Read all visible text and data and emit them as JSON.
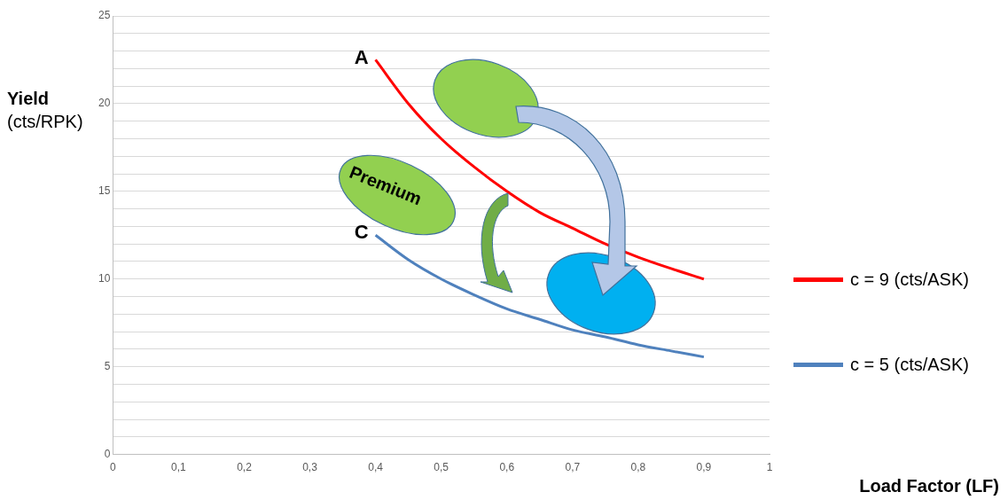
{
  "chart_data": {
    "type": "line",
    "xlabel": "Load Factor (LF)",
    "ylabel": "Yield\n(cts/RPK)",
    "xlim": [
      0,
      1
    ],
    "xticks": [
      0,
      {
        "value": 0.1,
        "label": "0,1"
      },
      {
        "value": 0.2,
        "label": "0,2"
      },
      {
        "value": 0.3,
        "label": "0,3"
      },
      {
        "value": 0.4,
        "label": "0,4"
      },
      {
        "value": 0.5,
        "label": "0,5"
      },
      {
        "value": 0.6,
        "label": "0,6"
      },
      {
        "value": 0.7,
        "label": "0,7"
      },
      {
        "value": 0.8,
        "label": "0,8"
      },
      {
        "value": 0.9,
        "label": "0,9"
      },
      1
    ],
    "ylim": [
      0,
      25
    ],
    "yticks": [
      0,
      {
        "value": 1,
        "label": null
      },
      {
        "value": 2,
        "label": null
      },
      {
        "value": 3,
        "label": null
      },
      {
        "value": 4,
        "label": null
      },
      5,
      {
        "value": 6,
        "label": null
      },
      {
        "value": 7,
        "label": null
      },
      {
        "value": 8,
        "label": null
      },
      {
        "value": 9,
        "label": null
      },
      10,
      {
        "value": 11,
        "label": null
      },
      {
        "value": 12,
        "label": null
      },
      {
        "value": 13,
        "label": null
      },
      {
        "value": 14,
        "label": null
      },
      15,
      {
        "value": 16,
        "label": null
      },
      {
        "value": 17,
        "label": null
      },
      {
        "value": 18,
        "label": null
      },
      {
        "value": 19,
        "label": null
      },
      20,
      {
        "value": 21,
        "label": null
      },
      {
        "value": 22,
        "label": null
      },
      {
        "value": 23,
        "label": null
      },
      {
        "value": 24,
        "label": null
      },
      25
    ],
    "x": [
      0.4,
      0.45,
      0.5,
      0.55,
      0.6,
      0.65,
      0.7,
      0.75,
      0.8,
      0.85,
      0.9
    ],
    "series": [
      {
        "name": "c = 9 (cts/ASK)",
        "color": "#ff0000",
        "values": [
          22.5,
          20,
          18,
          16.4,
          15,
          13.8,
          12.9,
          12,
          11.25,
          10.6,
          10
        ]
      },
      {
        "name": "c = 5 (cts/ASK)",
        "color": "#4f81bd",
        "values": [
          12.5,
          11.1,
          10,
          9.1,
          8.3,
          7.7,
          7.1,
          6.7,
          6.25,
          5.9,
          5.56
        ]
      }
    ],
    "annotations": [
      {
        "text": "A",
        "x": 0.4,
        "y": 22.5
      },
      {
        "text": "C",
        "x": 0.4,
        "y": 12.5
      },
      "Premium"
    ],
    "grid": "y",
    "legend": "right",
    "marker": "none",
    "line_style": "solid"
  }
}
